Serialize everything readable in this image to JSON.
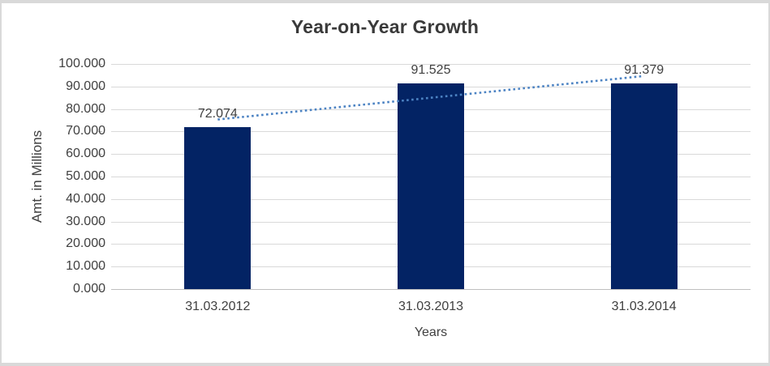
{
  "chart": {
    "title": "Year-on-Year Growth",
    "x_axis_title": "Years",
    "y_axis_title": "Amt. in Millions"
  },
  "chart_data": {
    "type": "bar",
    "title": "Year-on-Year Growth",
    "xlabel": "Years",
    "ylabel": "Amt. in Millions",
    "categories": [
      "31.03.2012",
      "31.03.2013",
      "31.03.2014"
    ],
    "values": [
      72.074,
      91.525,
      91.379
    ],
    "data_labels": [
      "72.074",
      "91.525",
      "91.379"
    ],
    "ylim": [
      0,
      100
    ],
    "ytick_values": [
      0,
      10,
      20,
      30,
      40,
      50,
      60,
      70,
      80,
      90,
      100
    ],
    "ytick_labels": [
      "0.000",
      "10.000",
      "20.000",
      "30.000",
      "40.000",
      "50.000",
      "60.000",
      "70.000",
      "80.000",
      "90.000",
      "100.000"
    ],
    "grid": true,
    "legend": "none",
    "trendline": {
      "kind": "linear",
      "style": "dotted"
    },
    "colors": {
      "bar": "#032364",
      "trendline": "#4C83C3",
      "gridline": "#D9D9D9",
      "axis_line": "#BFBFBF",
      "tick_text": "#404040",
      "title_text": "#3A3A3A",
      "frame_border": "#D9D9D9"
    }
  }
}
